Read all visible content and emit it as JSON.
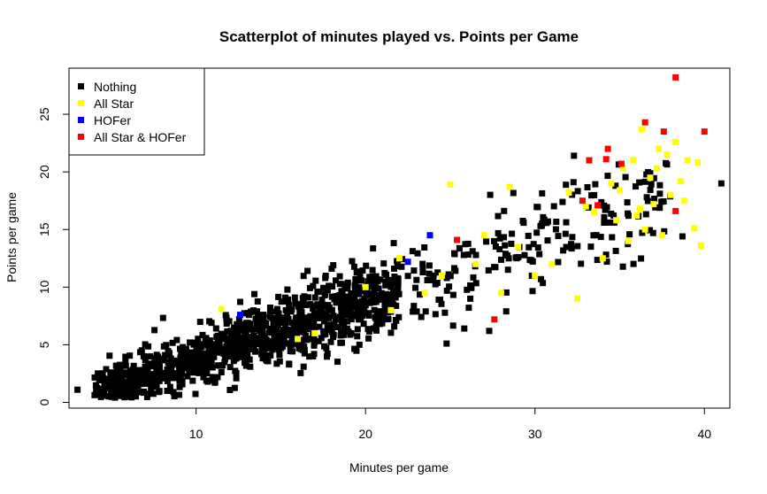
{
  "chart_data": {
    "type": "scatter",
    "title": "Scatterplot of minutes played vs. Points per Game",
    "xlabel": "Minutes per game",
    "ylabel": "Points per game",
    "xlim": [
      2.5,
      41.5
    ],
    "ylim": [
      -0.5,
      29
    ],
    "x_ticks": [
      10,
      20,
      30,
      40
    ],
    "y_ticks": [
      0,
      5,
      10,
      15,
      20,
      25
    ],
    "legend_position": "top-left",
    "series": [
      {
        "name": "Nothing",
        "color": "#000000",
        "generated": true,
        "n": 1300,
        "seed": 7,
        "x_range": [
          4,
          41
        ],
        "slope": 0.5,
        "intercept": -1.2,
        "noise": 1.3,
        "points": [
          [
            3.0,
            1.1
          ],
          [
            41.0,
            19.0
          ],
          [
            36.6,
            17.8
          ],
          [
            38.7,
            14.4
          ],
          [
            32.3,
            21.4
          ],
          [
            28.3,
            7.9
          ],
          [
            27.3,
            6.2
          ],
          [
            19.5,
            8.4
          ],
          [
            18.0,
            11.6
          ]
        ]
      },
      {
        "name": "All Star",
        "color": "#ffff00",
        "points": [
          [
            11.5,
            8.1
          ],
          [
            17.0,
            6.0
          ],
          [
            20.0,
            10.0
          ],
          [
            22.0,
            12.5
          ],
          [
            25.0,
            18.9
          ],
          [
            28.5,
            18.7
          ],
          [
            31.0,
            12.0
          ],
          [
            32.0,
            18.2
          ],
          [
            32.5,
            9.0
          ],
          [
            33.5,
            16.5
          ],
          [
            34.0,
            12.5
          ],
          [
            34.5,
            19.0
          ],
          [
            35.0,
            18.4
          ],
          [
            35.5,
            14.0
          ],
          [
            35.8,
            21.0
          ],
          [
            36.0,
            16.2
          ],
          [
            36.3,
            23.7
          ],
          [
            36.5,
            15.0
          ],
          [
            36.8,
            19.5
          ],
          [
            37.0,
            17.2
          ],
          [
            37.3,
            22.0
          ],
          [
            37.5,
            14.5
          ],
          [
            37.8,
            21.5
          ],
          [
            38.0,
            18.0
          ],
          [
            38.3,
            22.6
          ],
          [
            38.6,
            19.2
          ],
          [
            39.0,
            21.0
          ],
          [
            39.4,
            15.1
          ],
          [
            39.6,
            20.8
          ],
          [
            39.8,
            13.6
          ],
          [
            24.5,
            11.0
          ],
          [
            26.5,
            12.0
          ],
          [
            27.0,
            14.5
          ],
          [
            28.0,
            9.5
          ],
          [
            29.0,
            13.5
          ],
          [
            30.0,
            11.0
          ],
          [
            33.0,
            17.0
          ],
          [
            34.8,
            15.8
          ],
          [
            35.2,
            20.3
          ],
          [
            36.2,
            16.8
          ],
          [
            37.2,
            20.3
          ],
          [
            38.8,
            17.5
          ],
          [
            16.0,
            5.5
          ],
          [
            21.5,
            8.0
          ],
          [
            23.5,
            9.5
          ]
        ]
      },
      {
        "name": "HOFer",
        "color": "#0000ff",
        "points": [
          [
            12.6,
            7.6
          ],
          [
            22.5,
            12.2
          ],
          [
            23.8,
            14.5
          ]
        ]
      },
      {
        "name": "All Star & HOFer",
        "color": "#ff0000",
        "points": [
          [
            38.3,
            28.2
          ],
          [
            40.0,
            23.5
          ],
          [
            36.5,
            24.3
          ],
          [
            37.6,
            23.5
          ],
          [
            38.3,
            16.6
          ],
          [
            34.3,
            22.0
          ],
          [
            33.2,
            21.0
          ],
          [
            33.7,
            17.1
          ],
          [
            34.2,
            21.1
          ],
          [
            32.8,
            17.5
          ],
          [
            25.4,
            14.1
          ],
          [
            27.6,
            7.2
          ],
          [
            35.1,
            20.7
          ]
        ]
      }
    ]
  }
}
